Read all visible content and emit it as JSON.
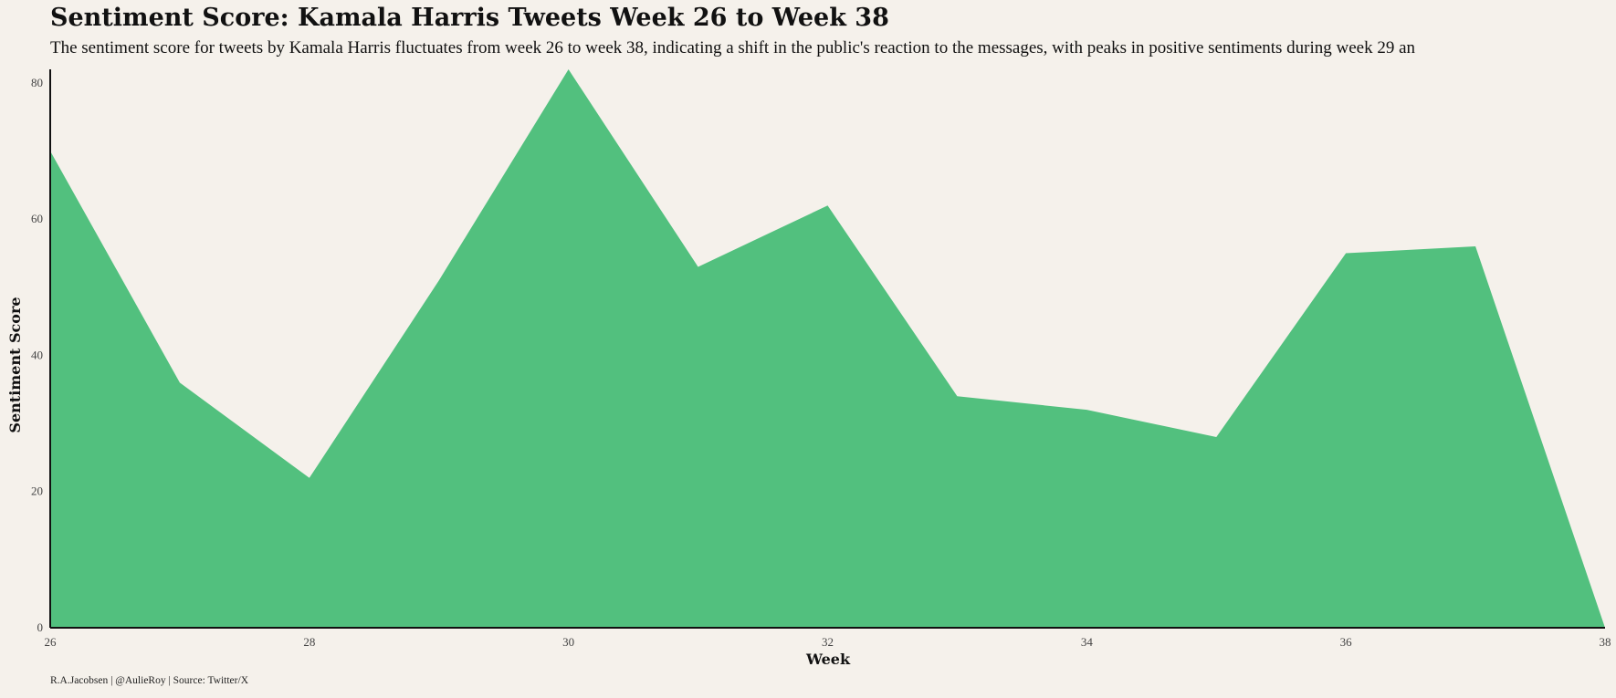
{
  "chart_data": {
    "type": "area",
    "title": "Sentiment Score: Kamala Harris Tweets Week 26 to Week 38",
    "subtitle": "The sentiment score for tweets by Kamala Harris fluctuates from week 26 to week 38, indicating a shift in the public's reaction to the messages, with peaks in positive sentiments during week 29 an",
    "xlabel": "Week",
    "ylabel": "Sentiment Score",
    "x": [
      26,
      27,
      28,
      29,
      30,
      31,
      32,
      33,
      34,
      35,
      36,
      37,
      38
    ],
    "values": [
      70,
      36,
      22,
      51,
      82,
      53,
      62,
      34,
      32,
      28,
      55,
      56,
      0
    ],
    "xlim": [
      26,
      38
    ],
    "ylim": [
      0,
      82
    ],
    "x_ticks": [
      26,
      28,
      30,
      32,
      34,
      36,
      38
    ],
    "y_ticks": [
      0,
      20,
      40,
      60,
      80
    ],
    "grid": false,
    "fill_color": "#52c07e",
    "caption": "R.A.Jacobsen | @AulieRoy | Source: Twitter/X"
  }
}
